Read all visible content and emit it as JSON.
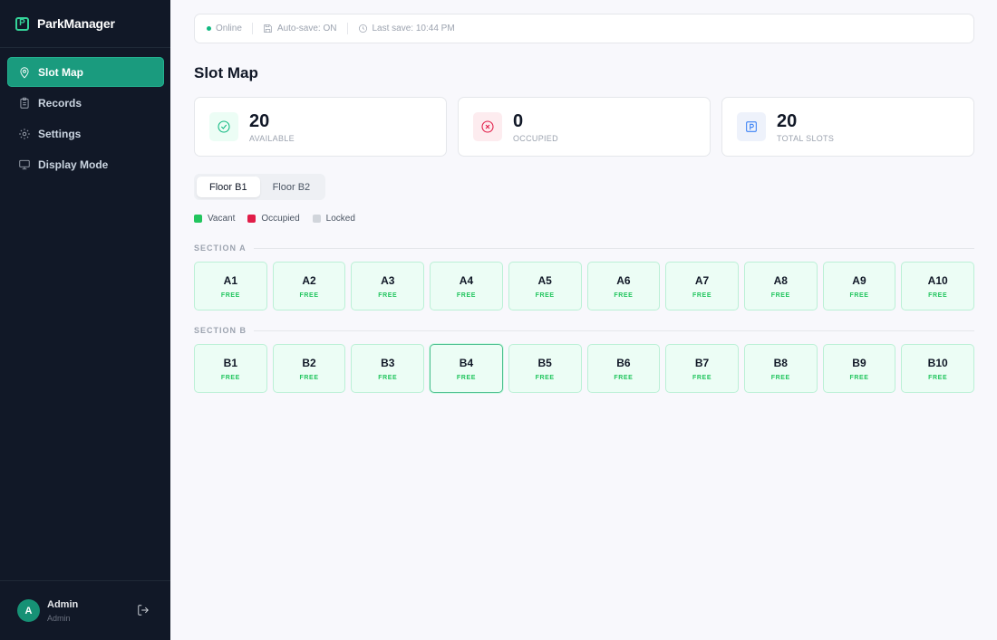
{
  "app": {
    "name": "ParkManager"
  },
  "sidebar": {
    "items": [
      {
        "label": "Slot Map",
        "icon": "map-pin-icon",
        "active": true
      },
      {
        "label": "Records",
        "icon": "clipboard-icon",
        "active": false
      },
      {
        "label": "Settings",
        "icon": "gear-icon",
        "active": false
      },
      {
        "label": "Display Mode",
        "icon": "monitor-icon",
        "active": false
      }
    ],
    "user": {
      "initial": "A",
      "name": "Admin",
      "role": "Admin"
    }
  },
  "statusbar": {
    "online": "Online",
    "autosave": "Auto-save: ON",
    "last_save": "Last save: 10:44 PM"
  },
  "page": {
    "title": "Slot Map"
  },
  "stats": [
    {
      "value": "20",
      "label": "AVAILABLE",
      "icon": "check-circle-icon",
      "color": "#10b981"
    },
    {
      "value": "0",
      "label": "OCCUPIED",
      "icon": "x-circle-icon",
      "color": "#e11d48"
    },
    {
      "value": "20",
      "label": "TOTAL SLOTS",
      "icon": "parking-icon",
      "color": "#3b82f6"
    }
  ],
  "floors": {
    "tabs": [
      "Floor B1",
      "Floor B2"
    ],
    "selected": "Floor B1"
  },
  "legend": [
    {
      "label": "Vacant",
      "color": "#22c55e"
    },
    {
      "label": "Occupied",
      "color": "#e11d48"
    },
    {
      "label": "Locked",
      "color": "#d1d5db"
    }
  ],
  "sections": [
    {
      "title": "SECTION A",
      "slots": [
        {
          "name": "A1",
          "status": "FREE"
        },
        {
          "name": "A2",
          "status": "FREE"
        },
        {
          "name": "A3",
          "status": "FREE"
        },
        {
          "name": "A4",
          "status": "FREE"
        },
        {
          "name": "A5",
          "status": "FREE"
        },
        {
          "name": "A6",
          "status": "FREE"
        },
        {
          "name": "A7",
          "status": "FREE"
        },
        {
          "name": "A8",
          "status": "FREE"
        },
        {
          "name": "A9",
          "status": "FREE"
        },
        {
          "name": "A10",
          "status": "FREE"
        }
      ]
    },
    {
      "title": "SECTION B",
      "slots": [
        {
          "name": "B1",
          "status": "FREE"
        },
        {
          "name": "B2",
          "status": "FREE"
        },
        {
          "name": "B3",
          "status": "FREE"
        },
        {
          "name": "B4",
          "status": "FREE"
        },
        {
          "name": "B5",
          "status": "FREE"
        },
        {
          "name": "B6",
          "status": "FREE"
        },
        {
          "name": "B7",
          "status": "FREE"
        },
        {
          "name": "B8",
          "status": "FREE"
        },
        {
          "name": "B9",
          "status": "FREE"
        },
        {
          "name": "B10",
          "status": "FREE"
        }
      ]
    }
  ]
}
